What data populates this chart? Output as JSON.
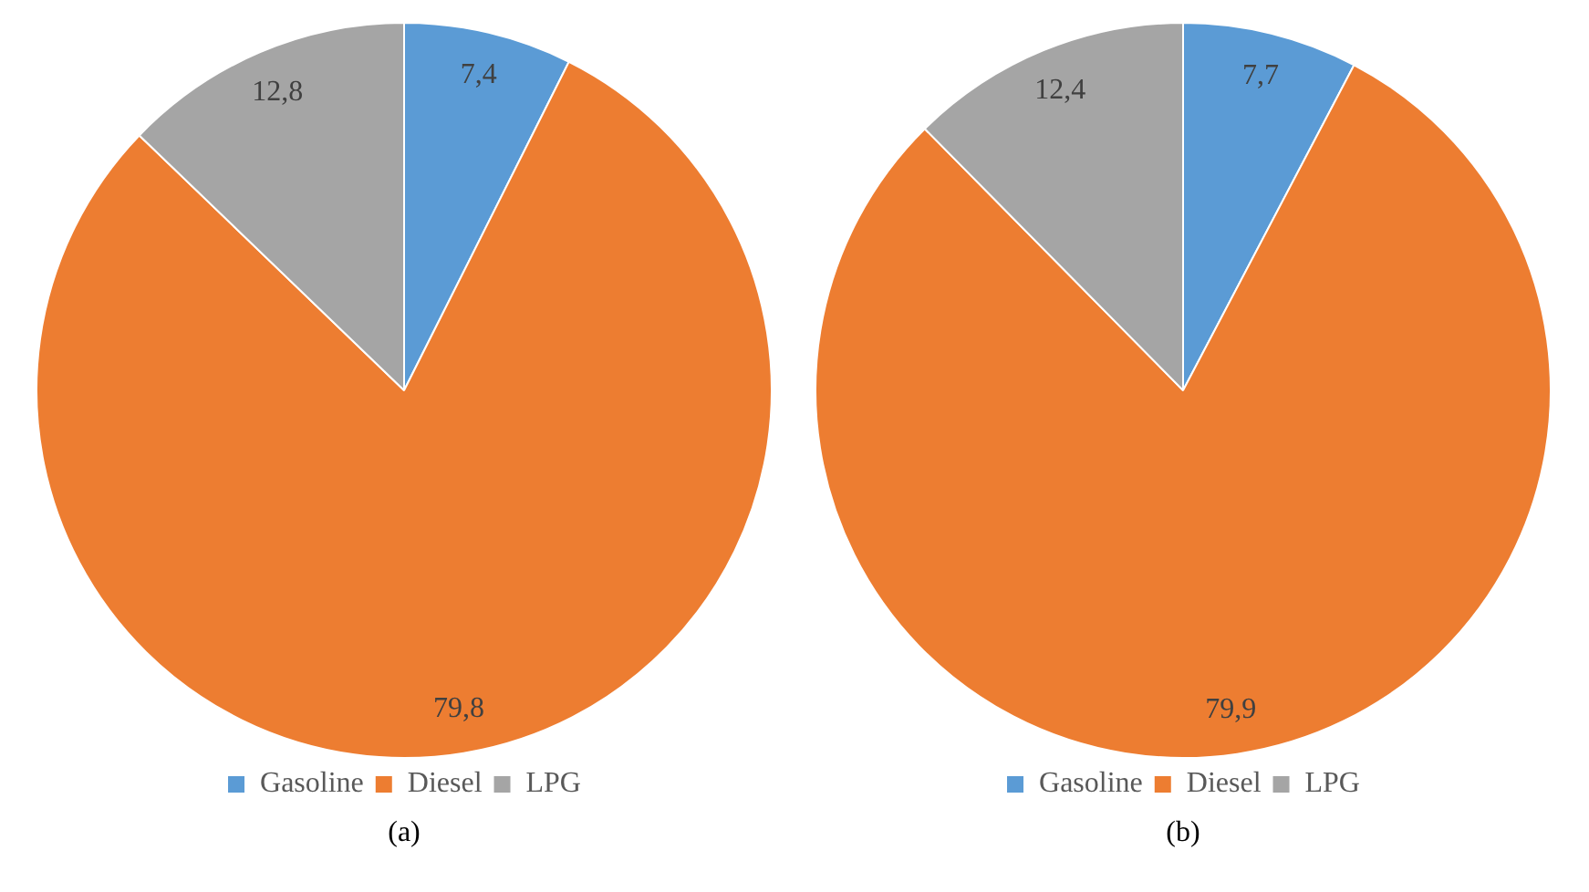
{
  "chart_data": [
    {
      "type": "pie",
      "title": "(a)",
      "categories": [
        "Gasoline",
        "Diesel",
        "LPG"
      ],
      "values": [
        7.4,
        79.8,
        12.8
      ],
      "colors": [
        "#5b9bd5",
        "#ed7d31",
        "#a5a5a5"
      ],
      "value_labels": [
        "7,4",
        "79,8",
        "12,8"
      ],
      "legend": "bottom"
    },
    {
      "type": "pie",
      "title": "(b)",
      "categories": [
        "Gasoline",
        "Diesel",
        "LPG"
      ],
      "values": [
        7.7,
        79.9,
        12.4
      ],
      "colors": [
        "#5b9bd5",
        "#ed7d31",
        "#a5a5a5"
      ],
      "value_labels": [
        "7,7",
        "79,9",
        "12,4"
      ],
      "legend": "bottom"
    }
  ]
}
